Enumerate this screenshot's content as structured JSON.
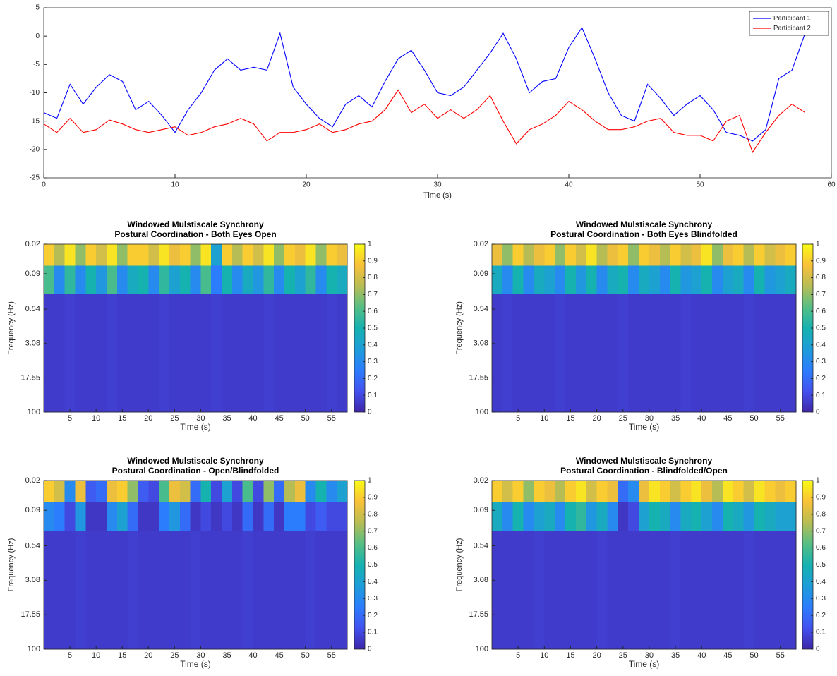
{
  "chart_data": [
    {
      "type": "line",
      "xlabel": "Time (s)",
      "xlim": [
        0,
        60
      ],
      "xticks": [
        0,
        10,
        20,
        30,
        40,
        50,
        60
      ],
      "ylim": [
        -25,
        5
      ],
      "yticks": [
        -25,
        -20,
        -15,
        -10,
        -5,
        0,
        5
      ],
      "legend": "top-right",
      "x": [
        0,
        1,
        2,
        3,
        4,
        5,
        6,
        7,
        8,
        9,
        10,
        11,
        12,
        13,
        14,
        15,
        16,
        17,
        18,
        19,
        20,
        21,
        22,
        23,
        24,
        25,
        26,
        27,
        28,
        29,
        30,
        31,
        32,
        33,
        34,
        35,
        36,
        37,
        38,
        39,
        40,
        41,
        42,
        43,
        44,
        45,
        46,
        47,
        48,
        49,
        50,
        51,
        52,
        53,
        54,
        55,
        56,
        57,
        58
      ],
      "series": [
        {
          "name": "Participant 1",
          "color": "#0000ff",
          "values": [
            -13.5,
            -14.5,
            -8.5,
            -12,
            -9,
            -6.8,
            -8,
            -13,
            -11.5,
            -14,
            -17,
            -13,
            -10,
            -6,
            -4,
            -6,
            -5.5,
            -6,
            0.5,
            -9,
            -12,
            -14.5,
            -16,
            -12,
            -10.5,
            -12.5,
            -8,
            -4,
            -2.5,
            -6,
            -10,
            -10.5,
            -9,
            -6,
            -3,
            0.5,
            -4,
            -10,
            -8,
            -7.5,
            -2,
            1.5,
            -4,
            -10,
            -14,
            -15,
            -8.5,
            -11,
            -14,
            -12,
            -10.5,
            -13,
            -17,
            -17.5,
            -18.5,
            -16.5,
            -7.5,
            -6,
            0.5
          ]
        },
        {
          "name": "Participant 2",
          "color": "#ff0000",
          "values": [
            -15.5,
            -17,
            -14.5,
            -17,
            -16.5,
            -14.8,
            -15.5,
            -16.5,
            -17,
            -16.5,
            -16,
            -17.5,
            -17,
            -16,
            -15.5,
            -14.5,
            -15.5,
            -18.5,
            -17,
            -17,
            -16.5,
            -15.5,
            -17,
            -16.5,
            -15.5,
            -15,
            -13,
            -9.5,
            -13.5,
            -12,
            -14.5,
            -13,
            -14.5,
            -13,
            -10.5,
            -15,
            -19,
            -16.5,
            -15.5,
            -14,
            -11.5,
            -13,
            -15,
            -16.5,
            -16.5,
            -16,
            -15,
            -14.5,
            -17,
            -17.5,
            -17.5,
            -18.5,
            -15,
            -14,
            -20.5,
            -17,
            -14,
            -12,
            -13.5
          ]
        }
      ]
    },
    {
      "type": "heatmap",
      "title": "Windowed Mulstiscale Synchrony",
      "subtitle": "Postural Coordination - Both Eyes Open",
      "xlabel": "Time (s)",
      "ylabel": "Frequency (Hz)",
      "xlim": [
        0,
        58
      ],
      "xticks": [
        5,
        10,
        15,
        20,
        25,
        30,
        35,
        40,
        45,
        50,
        55
      ],
      "ylim": [
        0.02,
        100
      ],
      "yscale": "log",
      "yreverse": true,
      "yticks": [
        0.02,
        0.09,
        0.54,
        3.08,
        17.55,
        100
      ],
      "clim": [
        0,
        1
      ],
      "cticks": [
        0,
        0.1,
        0.2,
        0.3,
        0.4,
        0.5,
        0.6,
        0.7,
        0.8,
        0.9,
        1
      ],
      "colormap": [
        "#3e26a8",
        "#4352ef",
        "#2c7dfd",
        "#1e9dd9",
        "#16b2b0",
        "#56be84",
        "#b7bd55",
        "#f9c138",
        "#f9fb15"
      ],
      "xbins": [
        0,
        2,
        4,
        6,
        8,
        10,
        12,
        14,
        16,
        18,
        20,
        22,
        24,
        26,
        28,
        30,
        32,
        34,
        36,
        38,
        40,
        42,
        44,
        46,
        48,
        50,
        52,
        54,
        56,
        58
      ],
      "ybins": [
        0.02,
        0.06,
        0.25,
        100
      ],
      "values": [
        [
          0.9,
          0.75,
          0.95,
          0.7,
          0.9,
          0.8,
          0.95,
          0.7,
          0.9,
          0.9,
          0.8,
          0.95,
          0.85,
          0.9,
          0.7,
          0.95,
          0.4,
          0.9,
          0.75,
          0.9,
          0.8,
          0.95,
          0.7,
          0.9,
          0.85,
          0.95,
          0.7,
          0.9,
          0.85
        ],
        [
          0.6,
          0.3,
          0.55,
          0.3,
          0.5,
          0.35,
          0.6,
          0.3,
          0.45,
          0.5,
          0.3,
          0.55,
          0.4,
          0.5,
          0.3,
          0.6,
          0.25,
          0.5,
          0.3,
          0.45,
          0.35,
          0.55,
          0.3,
          0.5,
          0.4,
          0.55,
          0.3,
          0.5,
          0.45
        ],
        [
          0.06,
          0.06,
          0.07,
          0.06,
          0.06,
          0.06,
          0.07,
          0.06,
          0.06,
          0.06,
          0.06,
          0.07,
          0.06,
          0.06,
          0.06,
          0.06,
          0.07,
          0.06,
          0.06,
          0.06,
          0.06,
          0.07,
          0.06,
          0.06,
          0.06,
          0.06,
          0.06,
          0.07,
          0.06
        ]
      ]
    },
    {
      "type": "heatmap",
      "title": "Windowed Mulstiscale Synchrony",
      "subtitle": "Postural Coordination - Both Eyes Blindfolded",
      "xlabel": "Time (s)",
      "ylabel": "Frequency (Hz)",
      "xlim": [
        0,
        58
      ],
      "xticks": [
        5,
        10,
        15,
        20,
        25,
        30,
        35,
        40,
        45,
        50,
        55
      ],
      "ylim": [
        0.02,
        100
      ],
      "yscale": "log",
      "yreverse": true,
      "yticks": [
        0.02,
        0.09,
        0.54,
        3.08,
        17.55,
        100
      ],
      "clim": [
        0,
        1
      ],
      "cticks": [
        0,
        0.1,
        0.2,
        0.3,
        0.4,
        0.5,
        0.6,
        0.7,
        0.8,
        0.9,
        1
      ],
      "colormap": [
        "#3e26a8",
        "#4352ef",
        "#2c7dfd",
        "#1e9dd9",
        "#16b2b0",
        "#56be84",
        "#b7bd55",
        "#f9c138",
        "#f9fb15"
      ],
      "xbins": [
        0,
        2,
        4,
        6,
        8,
        10,
        12,
        14,
        16,
        18,
        20,
        22,
        24,
        26,
        28,
        30,
        32,
        34,
        36,
        38,
        40,
        42,
        44,
        46,
        48,
        50,
        52,
        54,
        56,
        58
      ],
      "ybins": [
        0.02,
        0.06,
        0.25,
        100
      ],
      "values": [
        [
          0.85,
          0.7,
          0.9,
          0.75,
          0.85,
          0.9,
          0.7,
          0.9,
          0.8,
          0.95,
          0.75,
          0.85,
          0.9,
          0.7,
          0.9,
          0.85,
          0.75,
          0.9,
          0.8,
          0.85,
          0.95,
          0.7,
          0.85,
          0.9,
          0.75,
          0.9,
          0.8,
          0.85,
          0.9
        ],
        [
          0.45,
          0.3,
          0.5,
          0.3,
          0.45,
          0.4,
          0.3,
          0.5,
          0.35,
          0.5,
          0.3,
          0.45,
          0.5,
          0.3,
          0.45,
          0.4,
          0.3,
          0.5,
          0.35,
          0.4,
          0.5,
          0.3,
          0.4,
          0.45,
          0.3,
          0.5,
          0.35,
          0.4,
          0.45
        ],
        [
          0.06,
          0.07,
          0.06,
          0.06,
          0.06,
          0.06,
          0.07,
          0.06,
          0.06,
          0.06,
          0.06,
          0.06,
          0.07,
          0.06,
          0.06,
          0.06,
          0.06,
          0.06,
          0.07,
          0.06,
          0.06,
          0.06,
          0.06,
          0.06,
          0.07,
          0.06,
          0.06,
          0.06,
          0.06
        ]
      ]
    },
    {
      "type": "heatmap",
      "title": "Windowed Mulstiscale Synchrony",
      "subtitle": "Postural Coordination - Open/Blindfolded",
      "xlabel": "Time (s)",
      "ylabel": "Frequency (Hz)",
      "xlim": [
        0,
        58
      ],
      "xticks": [
        5,
        10,
        15,
        20,
        25,
        30,
        35,
        40,
        45,
        50,
        55
      ],
      "ylim": [
        0.02,
        100
      ],
      "yscale": "log",
      "yreverse": true,
      "yticks": [
        0.02,
        0.09,
        0.54,
        3.08,
        17.55,
        100
      ],
      "clim": [
        0,
        1
      ],
      "cticks": [
        0,
        0.1,
        0.2,
        0.3,
        0.4,
        0.5,
        0.6,
        0.7,
        0.8,
        0.9,
        1
      ],
      "colormap": [
        "#3e26a8",
        "#4352ef",
        "#2c7dfd",
        "#1e9dd9",
        "#16b2b0",
        "#56be84",
        "#b7bd55",
        "#f9c138",
        "#f9fb15"
      ],
      "xbins": [
        0,
        2,
        4,
        6,
        8,
        10,
        12,
        14,
        16,
        18,
        20,
        22,
        24,
        26,
        28,
        30,
        32,
        34,
        36,
        38,
        40,
        42,
        44,
        46,
        48,
        50,
        52,
        54,
        56,
        58
      ],
      "ybins": [
        0.02,
        0.06,
        0.25,
        100
      ],
      "values": [
        [
          0.9,
          0.8,
          0.3,
          0.85,
          0.15,
          0.2,
          0.85,
          0.9,
          0.7,
          0.15,
          0.1,
          0.6,
          0.85,
          0.8,
          0.2,
          0.5,
          0.1,
          0.4,
          0.1,
          0.6,
          0.1,
          0.7,
          0.2,
          0.75,
          0.85,
          0.3,
          0.5,
          0.3,
          0.4
        ],
        [
          0.3,
          0.25,
          0.1,
          0.35,
          0.05,
          0.05,
          0.3,
          0.4,
          0.2,
          0.05,
          0.05,
          0.25,
          0.35,
          0.2,
          0.05,
          0.1,
          0.05,
          0.1,
          0.05,
          0.2,
          0.05,
          0.2,
          0.05,
          0.25,
          0.25,
          0.1,
          0.15,
          0.1,
          0.1
        ],
        [
          0.06,
          0.06,
          0.06,
          0.07,
          0.06,
          0.06,
          0.06,
          0.06,
          0.07,
          0.06,
          0.06,
          0.06,
          0.06,
          0.06,
          0.07,
          0.06,
          0.06,
          0.06,
          0.06,
          0.07,
          0.06,
          0.06,
          0.06,
          0.06,
          0.06,
          0.07,
          0.06,
          0.06,
          0.06
        ]
      ]
    },
    {
      "type": "heatmap",
      "title": "Windowed Mulstiscale Synchrony",
      "subtitle": "Postural Coordination - Blindfolded/Open",
      "xlabel": "Time (s)",
      "ylabel": "Frequency (Hz)",
      "xlim": [
        0,
        58
      ],
      "xticks": [
        5,
        10,
        15,
        20,
        25,
        30,
        35,
        40,
        45,
        50,
        55
      ],
      "ylim": [
        0.02,
        100
      ],
      "yscale": "log",
      "yreverse": true,
      "yticks": [
        0.02,
        0.09,
        0.54,
        3.08,
        17.55,
        100
      ],
      "clim": [
        0,
        1
      ],
      "cticks": [
        0,
        0.1,
        0.2,
        0.3,
        0.4,
        0.5,
        0.6,
        0.7,
        0.8,
        0.9,
        1
      ],
      "colormap": [
        "#3e26a8",
        "#4352ef",
        "#2c7dfd",
        "#1e9dd9",
        "#16b2b0",
        "#56be84",
        "#b7bd55",
        "#f9c138",
        "#f9fb15"
      ],
      "xbins": [
        0,
        2,
        4,
        6,
        8,
        10,
        12,
        14,
        16,
        18,
        20,
        22,
        24,
        26,
        28,
        30,
        32,
        34,
        36,
        38,
        40,
        42,
        44,
        46,
        48,
        50,
        52,
        54,
        56,
        58
      ],
      "ybins": [
        0.02,
        0.06,
        0.25,
        100
      ],
      "values": [
        [
          0.9,
          0.8,
          0.9,
          0.7,
          0.9,
          0.85,
          0.75,
          0.9,
          0.95,
          0.8,
          0.9,
          0.85,
          0.2,
          0.3,
          0.85,
          0.95,
          0.9,
          0.8,
          0.9,
          0.95,
          0.85,
          0.75,
          0.95,
          0.9,
          0.8,
          0.95,
          0.9,
          0.85,
          0.9
        ],
        [
          0.45,
          0.3,
          0.5,
          0.3,
          0.4,
          0.45,
          0.3,
          0.5,
          0.55,
          0.35,
          0.45,
          0.3,
          0.05,
          0.1,
          0.4,
          0.5,
          0.45,
          0.3,
          0.45,
          0.5,
          0.4,
          0.3,
          0.5,
          0.45,
          0.35,
          0.5,
          0.45,
          0.4,
          0.4
        ],
        [
          0.06,
          0.06,
          0.06,
          0.06,
          0.07,
          0.06,
          0.06,
          0.06,
          0.06,
          0.06,
          0.07,
          0.06,
          0.06,
          0.06,
          0.06,
          0.06,
          0.06,
          0.07,
          0.06,
          0.06,
          0.06,
          0.06,
          0.06,
          0.06,
          0.07,
          0.06,
          0.06,
          0.06,
          0.06
        ]
      ]
    }
  ]
}
